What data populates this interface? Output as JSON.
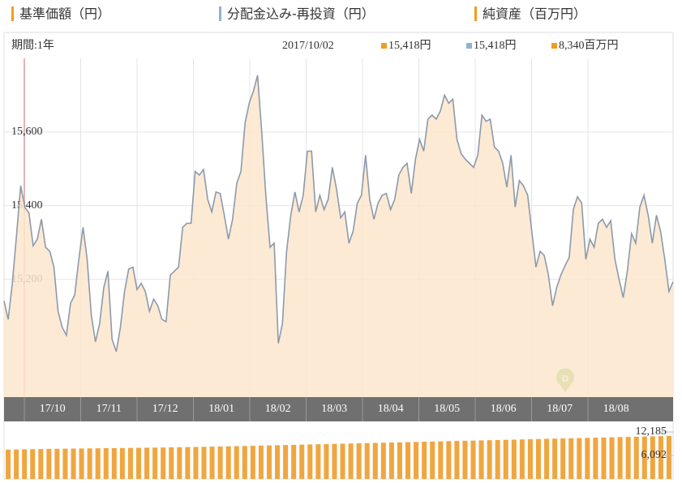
{
  "legend": [
    {
      "name": "基準価額（円）",
      "color": "#f39c1f"
    },
    {
      "name": "分配金込み-再投資（円）",
      "color": "#8fb0d8"
    },
    {
      "name": "純資産（百万円）",
      "color": "#f39c1f"
    }
  ],
  "header": {
    "period": "期間:1年",
    "date": "2017/10/02",
    "readouts": [
      {
        "text": "15,418円",
        "color": "#f39c1f"
      },
      {
        "text": "15,418円",
        "color": "#8fb0d8"
      },
      {
        "text": "8,340百万円",
        "color": "#f39c1f"
      }
    ]
  },
  "chart_data": [
    {
      "type": "area",
      "months": [
        "17/10",
        "17/11",
        "17/12",
        "18/01",
        "18/02",
        "18/03",
        "18/04",
        "18/05",
        "18/06",
        "18/07",
        "18/08"
      ],
      "annotation": "D",
      "color": "#8c9aab",
      "fill": "#fde6cc",
      "grid": true,
      "ylim": [
        14880,
        15800
      ],
      "yticks": [
        {
          "value": 15200,
          "label": "15,200"
        },
        {
          "value": 15400,
          "label": "15,400"
        },
        {
          "value": 15600,
          "label": "15,600"
        }
      ],
      "values": [
        15141,
        15091,
        15189,
        15320,
        15454,
        15396,
        15380,
        15291,
        15309,
        15363,
        15287,
        15276,
        15233,
        15113,
        15070,
        15048,
        15135,
        15157,
        15254,
        15341,
        15254,
        15102,
        15030,
        15080,
        15178,
        15222,
        15037,
        15004,
        15070,
        15167,
        15228,
        15233,
        15172,
        15189,
        15167,
        15113,
        15146,
        15128,
        15091,
        15085,
        15211,
        15222,
        15233,
        15341,
        15352,
        15352,
        15493,
        15483,
        15498,
        15417,
        15383,
        15437,
        15433,
        15374,
        15309,
        15363,
        15461,
        15493,
        15624,
        15678,
        15711,
        15754,
        15602,
        15428,
        15287,
        15298,
        15026,
        15080,
        15276,
        15374,
        15437,
        15383,
        15428,
        15548,
        15548,
        15383,
        15428,
        15389,
        15417,
        15504,
        15446,
        15367,
        15383,
        15298,
        15330,
        15407,
        15428,
        15537,
        15417,
        15363,
        15407,
        15428,
        15433,
        15389,
        15417,
        15483,
        15504,
        15515,
        15433,
        15526,
        15580,
        15548,
        15635,
        15646,
        15635,
        15657,
        15700,
        15678,
        15689,
        15580,
        15541,
        15526,
        15515,
        15504,
        15537,
        15646,
        15629,
        15635,
        15559,
        15548,
        15515,
        15450,
        15537,
        15396,
        15468,
        15454,
        15428,
        15330,
        15233,
        15276,
        15265,
        15211,
        15128,
        15178,
        15211,
        15237,
        15259,
        15389,
        15424,
        15407,
        15254,
        15309,
        15287,
        15352,
        15363,
        15341,
        15359,
        15254,
        15200,
        15150,
        15222,
        15324,
        15298,
        15396,
        15428,
        15374,
        15298,
        15374,
        15330,
        15254,
        15167,
        15193
      ]
    },
    {
      "type": "bar",
      "color": "#f0a640",
      "ylim": [
        0,
        13867
      ],
      "yticks": [
        {
          "value": 6092,
          "label": "6,092"
        },
        {
          "value": 12185,
          "label": "12,185"
        }
      ],
      "values": [
        7600,
        7650,
        7700,
        7720,
        7760,
        7800,
        7820,
        7850,
        7880,
        7900,
        7930,
        7950,
        7980,
        8000,
        8020,
        8050,
        8080,
        8100,
        8130,
        8160,
        8200,
        8230,
        8260,
        8300,
        8340,
        8380,
        8420,
        8460,
        8500,
        8550,
        8600,
        8650,
        8700,
        8750,
        8800,
        8850,
        8900,
        8950,
        9000,
        9050,
        9100,
        9150,
        9200,
        9250,
        9300,
        9350,
        9400,
        9450,
        9500,
        9550,
        9600,
        9650,
        9700,
        9750,
        9800,
        9850,
        9900,
        9950,
        10000,
        10050,
        10100,
        10150,
        10200,
        10250,
        10300,
        10350,
        10400,
        10450,
        10500,
        10550,
        10600,
        10650,
        10700,
        10750,
        10800,
        10850,
        10900,
        10950,
        11000,
        11050,
        11100,
        11150
      ]
    }
  ]
}
